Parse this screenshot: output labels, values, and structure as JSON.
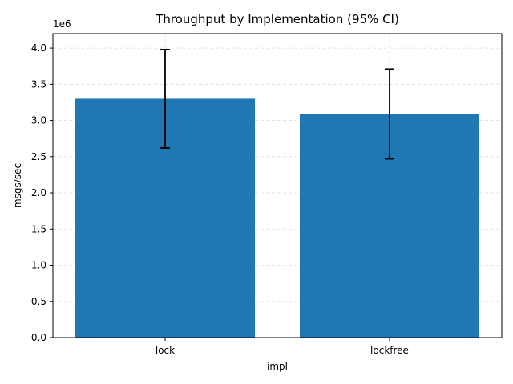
{
  "chart_data": {
    "type": "bar",
    "title": "Throughput by Implementation (95% CI)",
    "xlabel": "impl",
    "ylabel": "msgs/sec",
    "y_offset_label": "1e6",
    "categories": [
      "lock",
      "lockfree"
    ],
    "values": [
      3300000,
      3090000
    ],
    "error_low": [
      2620000,
      2470000
    ],
    "error_high": [
      3980000,
      3710000
    ],
    "ylim": [
      0,
      4200000
    ],
    "yticks": [
      0,
      500000,
      1000000,
      1500000,
      2000000,
      2500000,
      3000000,
      3500000,
      4000000
    ],
    "ytick_labels": [
      "0.0",
      "0.5",
      "1.0",
      "1.5",
      "2.0",
      "2.5",
      "3.0",
      "3.5",
      "4.0"
    ],
    "grid": true,
    "colors": {
      "bar": "#1f77b4",
      "error": "#000000",
      "grid": "#dddddd"
    }
  }
}
